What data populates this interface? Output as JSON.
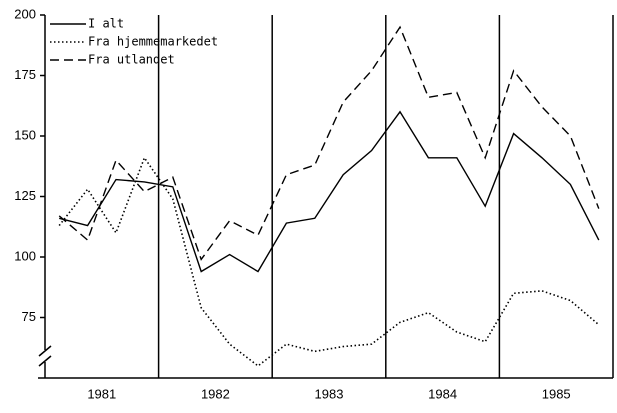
{
  "chart_data": {
    "type": "line",
    "categories": [
      null,
      "1981",
      null,
      null,
      null,
      "1982",
      null,
      null,
      null,
      "1983",
      null,
      null,
      null,
      "1984",
      null,
      null,
      null,
      "1985",
      null,
      null
    ],
    "series": [
      {
        "name": "I alt",
        "color": "#000000",
        "style": "solid",
        "values": [
          116,
          113,
          132,
          131,
          129,
          94,
          101,
          94,
          114,
          116,
          134,
          144,
          160,
          141,
          141,
          121,
          151,
          141,
          130,
          107
        ]
      },
      {
        "name": "Fra hjemmemarkedet",
        "color": "#000000",
        "style": "dotted",
        "values": [
          113,
          128,
          110,
          141,
          124,
          79,
          64,
          55,
          64,
          61,
          63,
          64,
          73,
          77,
          69,
          65,
          85,
          86,
          82,
          72
        ]
      },
      {
        "name": "Fra utlandet",
        "color": "#000000",
        "style": "dashed",
        "values": [
          117,
          107,
          140,
          127,
          133,
          99,
          115,
          109,
          134,
          138,
          164,
          177,
          195,
          166,
          168,
          141,
          177,
          162,
          150,
          120
        ]
      }
    ],
    "ylim": [
      50,
      200
    ],
    "yticks": [
      75,
      100,
      125,
      150,
      175,
      200
    ],
    "legend": "upper left"
  }
}
